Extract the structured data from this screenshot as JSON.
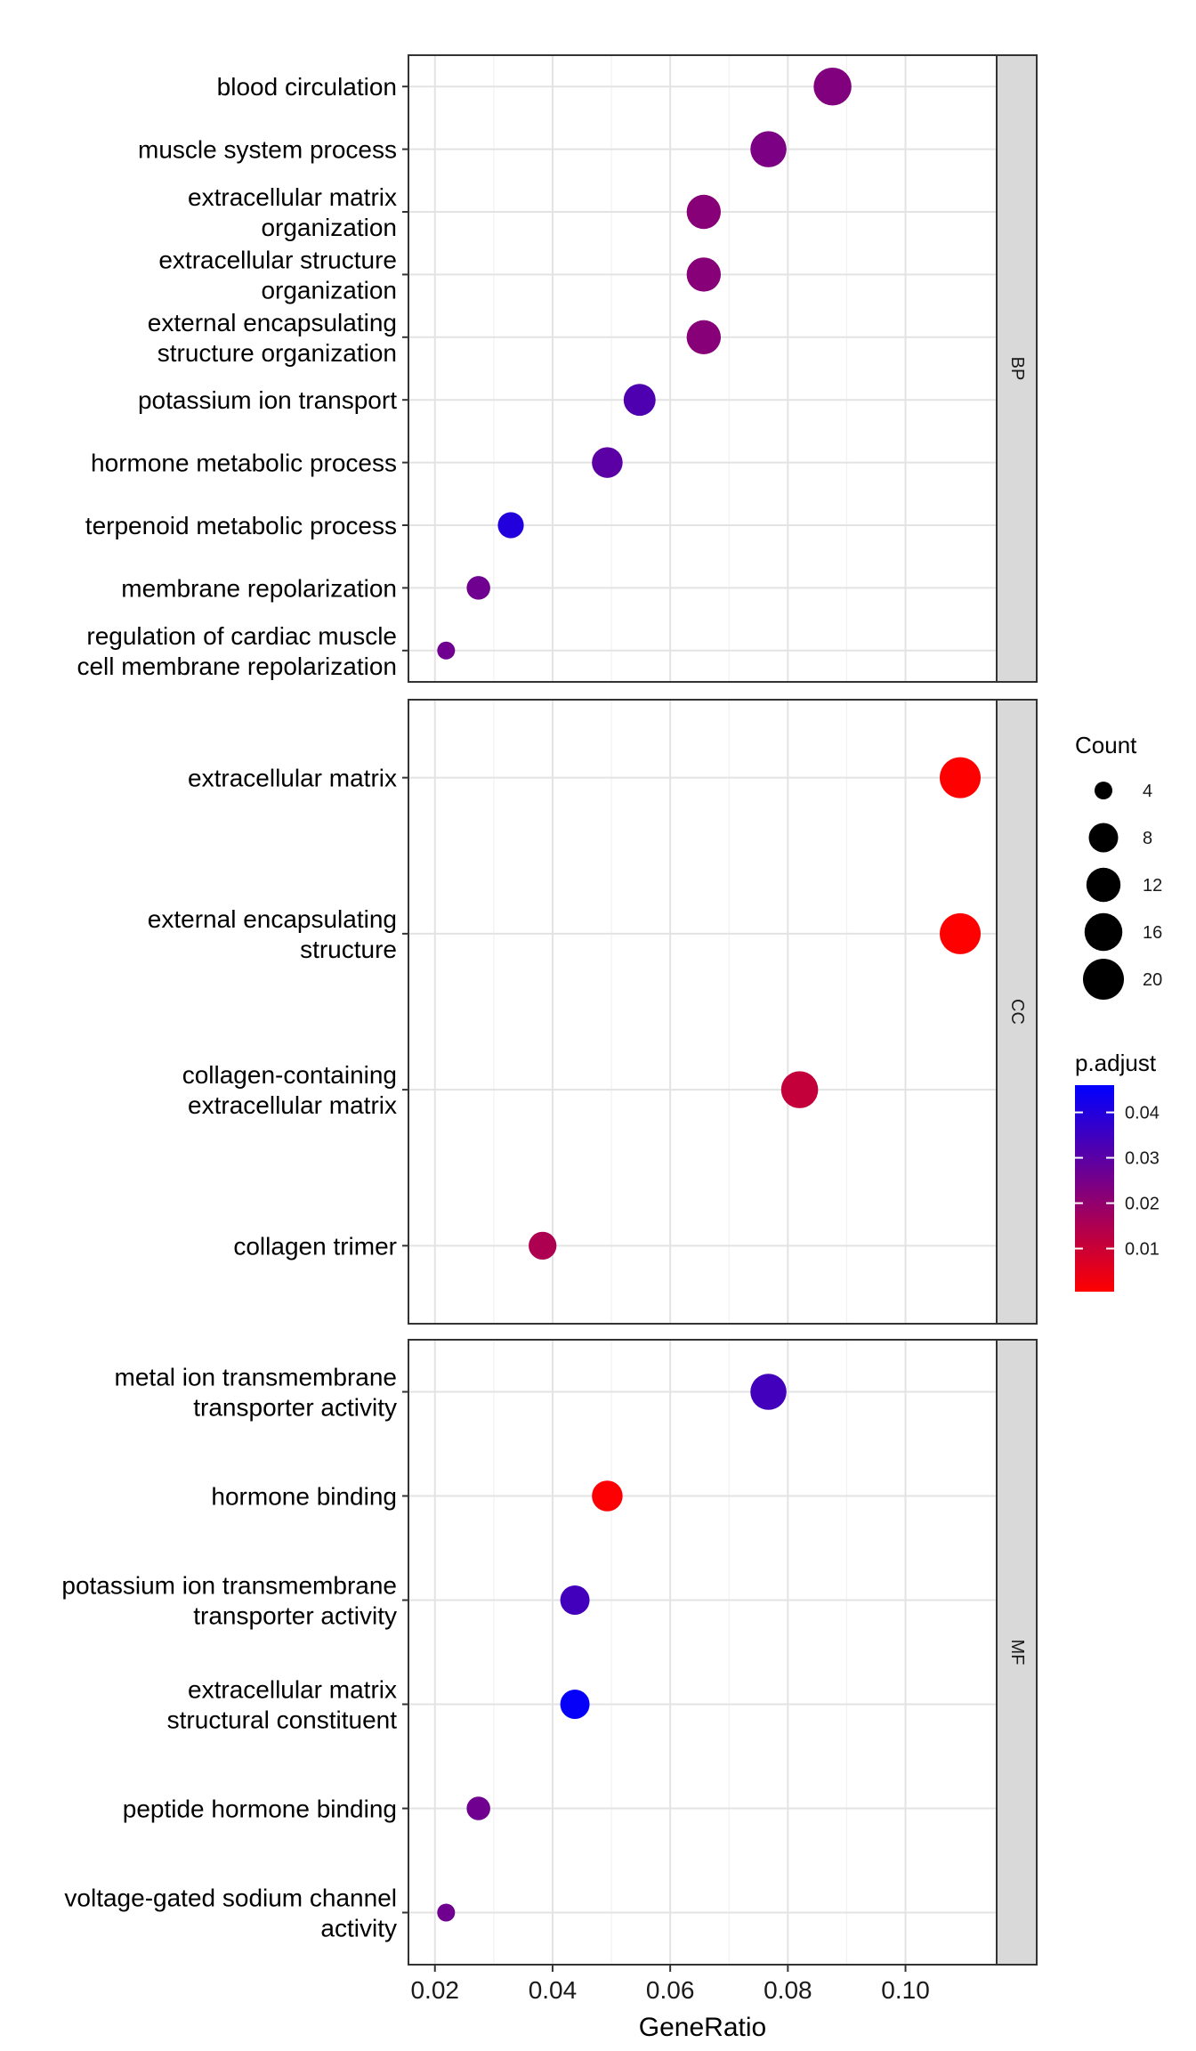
{
  "chart_data": {
    "type": "scatter",
    "xlabel": "GeneRatio",
    "xticks": [
      0.02,
      0.04,
      0.06,
      0.08,
      0.1
    ],
    "xlim": [
      0.0155,
      0.1155
    ],
    "grid": true,
    "legend_position": "right",
    "facets": [
      {
        "name": "BP",
        "terms": [
          {
            "label": [
              "blood circulation"
            ],
            "x": 0.0876,
            "count": 16,
            "p_adjust": 0.023
          },
          {
            "label": [
              "muscle system process"
            ],
            "x": 0.0767,
            "count": 14,
            "p_adjust": 0.024
          },
          {
            "label": [
              "extracellular matrix",
              "organization"
            ],
            "x": 0.0657,
            "count": 12,
            "p_adjust": 0.022
          },
          {
            "label": [
              "extracellular structure",
              "organization"
            ],
            "x": 0.0657,
            "count": 12,
            "p_adjust": 0.022
          },
          {
            "label": [
              "external encapsulating",
              "structure organization"
            ],
            "x": 0.0657,
            "count": 12,
            "p_adjust": 0.022
          },
          {
            "label": [
              "potassium ion transport"
            ],
            "x": 0.0548,
            "count": 10,
            "p_adjust": 0.032
          },
          {
            "label": [
              "hormone metabolic process"
            ],
            "x": 0.0493,
            "count": 9,
            "p_adjust": 0.03
          },
          {
            "label": [
              "terpenoid metabolic process"
            ],
            "x": 0.0329,
            "count": 6,
            "p_adjust": 0.04
          },
          {
            "label": [
              "membrane repolarization"
            ],
            "x": 0.0274,
            "count": 5,
            "p_adjust": 0.026
          },
          {
            "label": [
              "regulation of cardiac muscle",
              "cell membrane repolarization"
            ],
            "x": 0.0219,
            "count": 4,
            "p_adjust": 0.026
          }
        ]
      },
      {
        "name": "CC",
        "terms": [
          {
            "label": [
              "extracellular matrix"
            ],
            "x": 0.1093,
            "count": 20,
            "p_adjust": 0.0005
          },
          {
            "label": [
              "external encapsulating",
              "structure"
            ],
            "x": 0.1093,
            "count": 20,
            "p_adjust": 0.0005
          },
          {
            "label": [
              "collagen-containing",
              "extracellular matrix"
            ],
            "x": 0.082,
            "count": 15,
            "p_adjust": 0.011
          },
          {
            "label": [
              "collagen trimer"
            ],
            "x": 0.0383,
            "count": 7,
            "p_adjust": 0.015
          }
        ]
      },
      {
        "name": "MF",
        "terms": [
          {
            "label": [
              "metal ion transmembrane",
              "transporter activity"
            ],
            "x": 0.0767,
            "count": 14,
            "p_adjust": 0.034
          },
          {
            "label": [
              "hormone binding"
            ],
            "x": 0.0493,
            "count": 9,
            "p_adjust": 0.001
          },
          {
            "label": [
              "potassium ion transmembrane",
              "transporter activity"
            ],
            "x": 0.0438,
            "count": 8,
            "p_adjust": 0.034
          },
          {
            "label": [
              "extracellular matrix",
              "structural constituent"
            ],
            "x": 0.0438,
            "count": 8,
            "p_adjust": 0.045
          },
          {
            "label": [
              "peptide hormone binding"
            ],
            "x": 0.0274,
            "count": 5,
            "p_adjust": 0.026
          },
          {
            "label": [
              "voltage-gated sodium channel",
              "activity"
            ],
            "x": 0.0219,
            "count": 4,
            "p_adjust": 0.026
          }
        ]
      }
    ],
    "size_legend": {
      "title": "Count",
      "breaks": [
        4,
        8,
        12,
        16,
        20
      ]
    },
    "color_legend": {
      "title": "p.adjust",
      "breaks": [
        0.04,
        0.03,
        0.02,
        0.01
      ],
      "range": [
        0.0005,
        0.046
      ],
      "low_color": "#ff0000",
      "high_color": "#0000ff"
    }
  }
}
